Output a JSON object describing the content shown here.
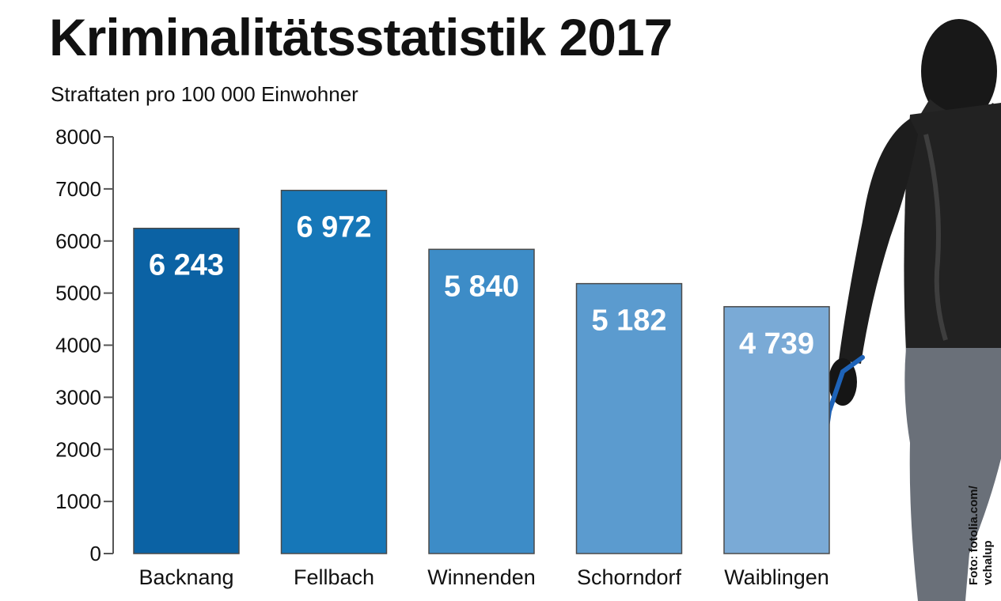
{
  "title": "Kriminalitätsstatistik 2017",
  "subtitle": "Straftaten pro 100 000 Einwohner",
  "credit": {
    "line1": "Foto: fotolia.com/",
    "line2": "vchalup"
  },
  "colors": {
    "bars": [
      "#0b62a4",
      "#1677b8",
      "#3d8cc7",
      "#5b9bcf",
      "#7aaad6"
    ],
    "text": "#111111",
    "label": "#ffffff"
  },
  "chart_data": {
    "type": "bar",
    "title": "Kriminalitätsstatistik 2017",
    "subtitle": "Straftaten pro 100 000 Einwohner",
    "categories": [
      "Backnang",
      "Fellbach",
      "Winnenden",
      "Schorndorf",
      "Waiblingen"
    ],
    "values": [
      6243,
      6972,
      5840,
      5182,
      4739
    ],
    "value_labels": [
      "6 243",
      "6 972",
      "5 840",
      "5 182",
      "4 739"
    ],
    "yticks": [
      "0",
      "1000",
      "2000",
      "3000",
      "4000",
      "5000",
      "6000",
      "7000",
      "8000"
    ],
    "ylim": [
      0,
      8000
    ],
    "xlabel": "",
    "ylabel": "",
    "grid": false,
    "legend": "none"
  }
}
